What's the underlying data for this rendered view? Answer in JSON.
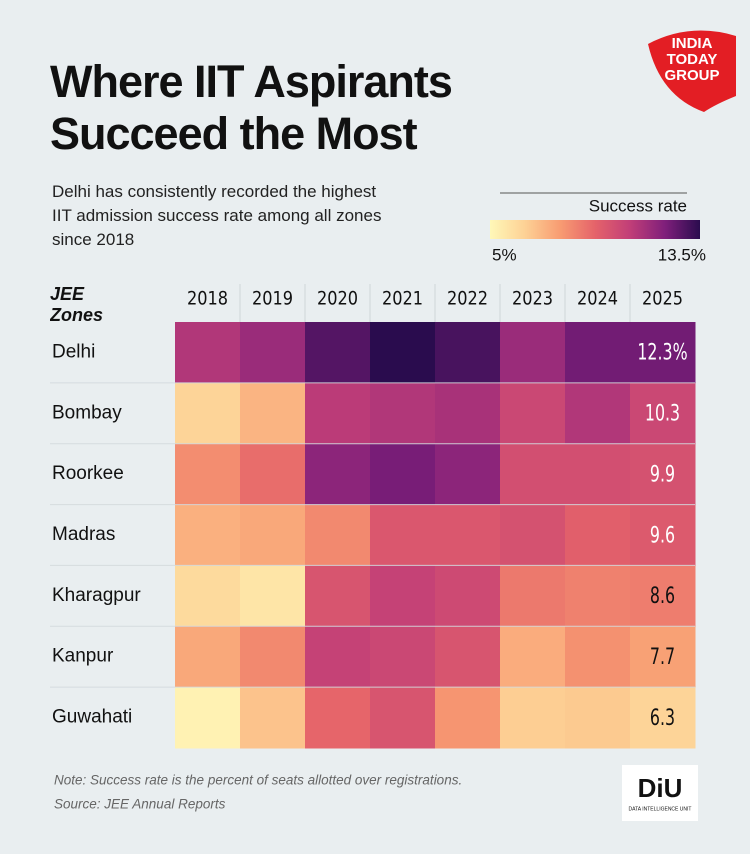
{
  "chart_data": {
    "type": "heatmap",
    "title": "Where IIT Aspirants Succeed the Most",
    "subtitle": "Delhi has consistently recorded the highest IIT admission success rate among all zones since 2018",
    "ylabel": "JEE Zones",
    "x": [
      "2018",
      "2019",
      "2020",
      "2021",
      "2022",
      "2023",
      "2024",
      "2025"
    ],
    "categories": [
      "Delhi",
      "Bombay",
      "Roorkee",
      "Madras",
      "Kharagpur",
      "Kanpur",
      "Guwahati"
    ],
    "values": [
      [
        11.0,
        11.5,
        12.8,
        13.5,
        13.0,
        11.5,
        12.3,
        12.3
      ],
      [
        6.3,
        7.2,
        10.8,
        11.0,
        11.2,
        10.3,
        11.0,
        10.3
      ],
      [
        8.2,
        9.0,
        11.8,
        12.2,
        11.8,
        10.0,
        10.0,
        9.9
      ],
      [
        7.3,
        7.5,
        8.3,
        9.7,
        9.7,
        9.9,
        9.4,
        9.6
      ],
      [
        6.1,
        5.7,
        9.8,
        10.5,
        10.2,
        8.7,
        8.5,
        8.6
      ],
      [
        7.5,
        8.3,
        10.5,
        10.3,
        9.8,
        7.4,
        8.1,
        7.7
      ],
      [
        5.2,
        6.8,
        9.2,
        9.8,
        8.0,
        6.5,
        6.6,
        6.3
      ]
    ],
    "value_labels": [
      [
        null,
        null,
        null,
        null,
        null,
        null,
        null,
        "12.3%"
      ],
      [
        null,
        null,
        null,
        null,
        null,
        null,
        null,
        "10.3"
      ],
      [
        null,
        null,
        null,
        null,
        null,
        null,
        null,
        "9.9"
      ],
      [
        null,
        null,
        null,
        null,
        null,
        null,
        null,
        "9.6"
      ],
      [
        null,
        null,
        null,
        null,
        null,
        null,
        null,
        "8.6"
      ],
      [
        null,
        null,
        null,
        null,
        null,
        null,
        null,
        "7.7"
      ],
      [
        null,
        null,
        null,
        null,
        null,
        null,
        null,
        "6.3"
      ]
    ],
    "zlim": [
      5,
      13.5
    ],
    "colorscale": [
      "#fff8b8",
      "#fdd195",
      "#f89c72",
      "#e5636a",
      "#c13e78",
      "#7f1f7b",
      "#2a0c4e"
    ],
    "colorbar": {
      "title": "Success rate",
      "ticks": [
        {
          "value": 5,
          "label": "5%"
        },
        {
          "value": 13.5,
          "label": "13.5%"
        }
      ]
    },
    "note": "Note: Success rate is the percent of seats allotted over registrations.",
    "source": "Source: JEE Annual Reports"
  },
  "logos": {
    "publisher": [
      "INDIA",
      "TODAY",
      "GROUP"
    ],
    "unit": "DiU",
    "unit_name": "DATA INTELLIGENCE UNIT"
  }
}
